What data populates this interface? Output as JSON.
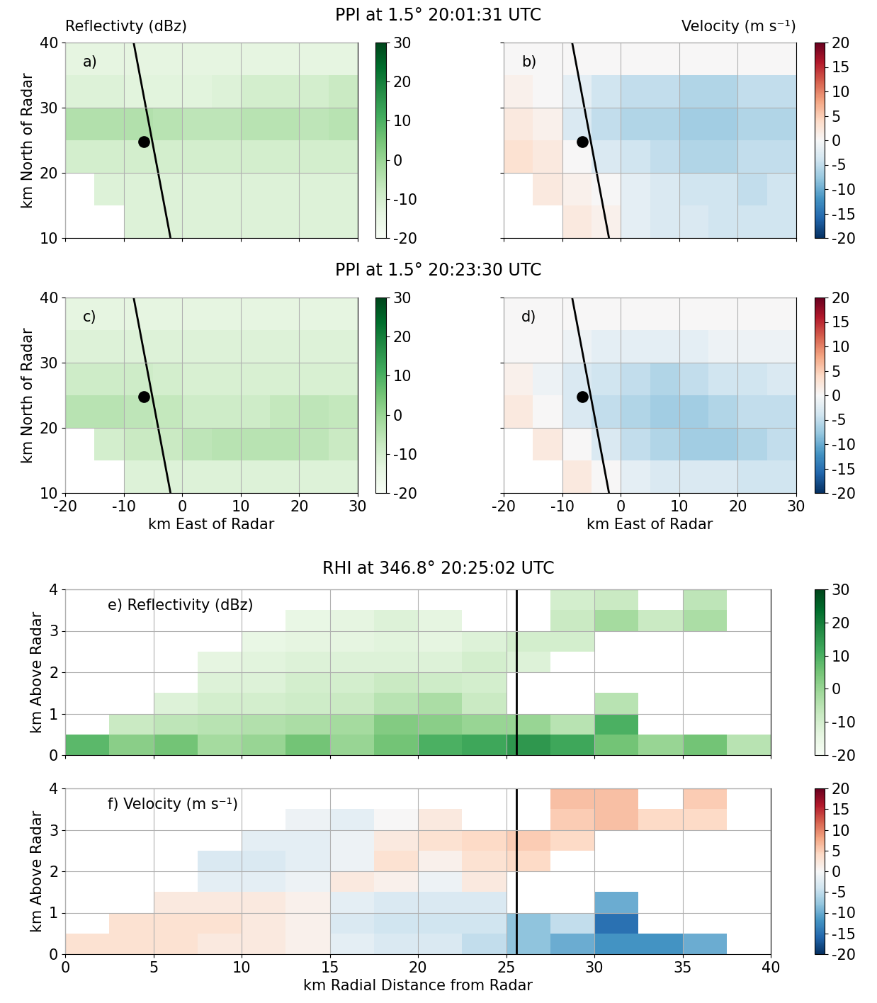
{
  "chart_data": [
    {
      "type": "heatmap",
      "title": "PPI at 1.5° 20:01:31 UTC",
      "subtitle": "Reflectivty (dBz)",
      "annotation": "a)",
      "color": "Greens",
      "ylabel": "km North of Radar",
      "tick_labels": "y",
      "grid": true,
      "xlim": [
        -20,
        30
      ],
      "xticks": [
        -20,
        -10,
        0,
        10,
        20,
        30
      ],
      "ylim": [
        10,
        40
      ],
      "yticks": [
        10,
        20,
        30,
        40
      ],
      "xbins": [
        -20,
        -15,
        -10,
        -5,
        0,
        5,
        10,
        15,
        20,
        25,
        30
      ],
      "ybins": [
        10,
        15,
        20,
        25,
        30,
        35,
        40
      ],
      "cells": [
        [
          null,
          null,
          -12,
          -12,
          -12,
          -12,
          -12,
          -12,
          -12,
          -12
        ],
        [
          null,
          -12,
          -12,
          -12,
          -12,
          -12,
          -12,
          -12,
          -12,
          -12
        ],
        [
          -10,
          -10,
          -10,
          -10,
          -10,
          -10,
          -10,
          -10,
          -10,
          -10
        ],
        [
          -4,
          -4,
          -4,
          -5,
          -6,
          -6,
          -5,
          -5,
          -6,
          -5
        ],
        [
          -12,
          -12,
          -13,
          -13,
          -13,
          -12,
          -10,
          -10,
          -10,
          -8
        ],
        [
          -14,
          -14,
          -14,
          -14,
          -14,
          -14,
          -14,
          -14,
          -14,
          -14
        ]
      ],
      "colorbar_range": [
        -20,
        30
      ],
      "colorbar_ticks": [
        -20,
        -10,
        0,
        10,
        20,
        30
      ],
      "line": {
        "x": [
          -2,
          -8.3
        ],
        "y": [
          10,
          40
        ],
        "color": "black"
      },
      "point": {
        "x": -6.6,
        "y": 24.8,
        "color": "black",
        "marker": "o"
      }
    },
    {
      "type": "heatmap",
      "subtitle": "Velocity (m s⁻¹)",
      "annotation": "b)",
      "color": "RdBu_r",
      "tick_labels": false,
      "grid": true,
      "xlim": [
        -20,
        30
      ],
      "xticks": [
        -20,
        -10,
        0,
        10,
        20,
        30
      ],
      "ylim": [
        10,
        40
      ],
      "yticks": [
        10,
        20,
        30,
        40
      ],
      "xbins": [
        -20,
        -15,
        -10,
        -5,
        0,
        5,
        10,
        15,
        20,
        25,
        30
      ],
      "ybins": [
        10,
        15,
        20,
        25,
        30,
        35,
        40
      ],
      "cells": [
        [
          null,
          null,
          2,
          1,
          -2,
          -3,
          -3,
          -4,
          -4,
          -4
        ],
        [
          null,
          2,
          1,
          0,
          -2,
          -3,
          -4,
          -4,
          -5,
          -4
        ],
        [
          3,
          2,
          0,
          -3,
          -4,
          -5,
          -6,
          -6,
          -5,
          -5
        ],
        [
          2,
          1,
          -3,
          -5,
          -6,
          -6,
          -7,
          -7,
          -6,
          -6
        ],
        [
          1,
          0,
          -2,
          -4,
          -5,
          -5,
          -6,
          -6,
          -5,
          -5
        ],
        [
          0,
          0,
          0,
          0,
          0,
          0,
          0,
          0,
          0,
          0
        ]
      ],
      "colorbar_range": [
        -20,
        20
      ],
      "colorbar_ticks": [
        -20,
        -15,
        -10,
        -5,
        0,
        5,
        10,
        15,
        20
      ],
      "line": {
        "x": [
          -2,
          -8.3
        ],
        "y": [
          10,
          40
        ],
        "color": "black"
      },
      "point": {
        "x": -6.6,
        "y": 24.8,
        "color": "black",
        "marker": "o"
      }
    },
    {
      "type": "heatmap",
      "title": "PPI at 1.5° 20:23:30 UTC",
      "annotation": "c)",
      "color": "Greens",
      "xlabel": "km East of Radar",
      "ylabel": "km North of Radar",
      "tick_labels": true,
      "grid": true,
      "xlim": [
        -20,
        30
      ],
      "xticks": [
        -20,
        -10,
        0,
        10,
        20,
        30
      ],
      "ylim": [
        10,
        40
      ],
      "yticks": [
        10,
        20,
        30,
        40
      ],
      "xbins": [
        -20,
        -15,
        -10,
        -5,
        0,
        5,
        10,
        15,
        20,
        25,
        30
      ],
      "ybins": [
        10,
        15,
        20,
        25,
        30,
        35,
        40
      ],
      "cells": [
        [
          null,
          null,
          -12,
          -12,
          -12,
          -12,
          -12,
          -12,
          -12,
          -12
        ],
        [
          null,
          -10,
          -8,
          -8,
          -6,
          -5,
          -5,
          -5,
          -6,
          -8
        ],
        [
          -5,
          -5,
          -6,
          -7,
          -9,
          -9,
          -9,
          -7,
          -6,
          -7
        ],
        [
          -9,
          -9,
          -9,
          -10,
          -11,
          -11,
          -11,
          -11,
          -11,
          -11
        ],
        [
          -12,
          -12,
          -12,
          -12,
          -12,
          -12,
          -12,
          -12,
          -12,
          -12
        ],
        [
          -14,
          -14,
          -14,
          -14,
          -14,
          -14,
          -14,
          -14,
          -14,
          -14
        ]
      ],
      "colorbar_range": [
        -20,
        30
      ],
      "colorbar_ticks": [
        -20,
        -10,
        0,
        10,
        20,
        30
      ],
      "line": {
        "x": [
          -2,
          -8.3
        ],
        "y": [
          10,
          40
        ],
        "color": "black"
      },
      "point": {
        "x": -6.6,
        "y": 24.8,
        "color": "black",
        "marker": "o"
      }
    },
    {
      "type": "heatmap",
      "annotation": "d)",
      "color": "RdBu_r",
      "xlabel": "km East of Radar",
      "tick_labels": "x",
      "grid": true,
      "xlim": [
        -20,
        30
      ],
      "xticks": [
        -20,
        -10,
        0,
        10,
        20,
        30
      ],
      "ylim": [
        10,
        40
      ],
      "yticks": [
        10,
        20,
        30,
        40
      ],
      "xbins": [
        -20,
        -15,
        -10,
        -5,
        0,
        5,
        10,
        15,
        20,
        25,
        30
      ],
      "ybins": [
        10,
        15,
        20,
        25,
        30,
        35,
        40
      ],
      "cells": [
        [
          null,
          null,
          2,
          0,
          -2,
          -3,
          -3,
          -3,
          -4,
          -4
        ],
        [
          null,
          2,
          0,
          -3,
          -5,
          -6,
          -7,
          -7,
          -6,
          -5
        ],
        [
          2,
          0,
          -3,
          -5,
          -6,
          -7,
          -7,
          -6,
          -5,
          -5
        ],
        [
          1,
          -1,
          -3,
          -4,
          -5,
          -6,
          -5,
          -4,
          -4,
          -3
        ],
        [
          0,
          0,
          -1,
          -2,
          -2,
          -2,
          -2,
          -1,
          -1,
          -1
        ],
        [
          0,
          0,
          0,
          0,
          0,
          0,
          0,
          0,
          0,
          0
        ]
      ],
      "colorbar_range": [
        -20,
        20
      ],
      "colorbar_ticks": [
        -20,
        -15,
        -10,
        -5,
        0,
        5,
        10,
        15,
        20
      ],
      "line": {
        "x": [
          -2,
          -8.3
        ],
        "y": [
          10,
          40
        ],
        "color": "black"
      },
      "point": {
        "x": -6.6,
        "y": 24.8,
        "color": "black",
        "marker": "o"
      }
    },
    {
      "type": "heatmap",
      "title": "RHI at 346.8° 20:25:02 UTC",
      "annotation": "e) Reflectivity (dBz)",
      "color": "Greens",
      "ylabel": "km Above Radar",
      "tick_labels": "y",
      "grid": true,
      "xlim": [
        0,
        40
      ],
      "xticks": [
        0,
        5,
        10,
        15,
        20,
        25,
        30,
        35,
        40
      ],
      "ylim": [
        0,
        4
      ],
      "yticks": [
        0,
        1,
        2,
        3,
        4
      ],
      "xbins": [
        0,
        2.5,
        5,
        7.5,
        10,
        12.5,
        15,
        17.5,
        20,
        22.5,
        25,
        27.5,
        30,
        32.5,
        35,
        37.5,
        40
      ],
      "ybins": [
        0,
        0.5,
        1,
        1.5,
        2,
        2.5,
        3,
        3.5,
        4
      ],
      "cells": [
        [
          8,
          2,
          5,
          -2,
          0,
          5,
          0,
          5,
          10,
          12,
          15,
          12,
          5,
          0,
          5,
          -5
        ],
        [
          null,
          -8,
          -6,
          -5,
          -4,
          -3,
          -2,
          3,
          2,
          0,
          0,
          -5,
          10,
          null,
          null,
          null
        ],
        [
          null,
          null,
          -12,
          -10,
          -10,
          -9,
          -8,
          -5,
          -3,
          -8,
          null,
          null,
          -5,
          null,
          null,
          null
        ],
        [
          null,
          null,
          null,
          -12,
          -12,
          -10,
          -10,
          -8,
          -9,
          -10,
          null,
          null,
          null,
          null,
          null,
          null
        ],
        [
          null,
          null,
          null,
          -14,
          -13,
          -12,
          -12,
          -12,
          -12,
          -10,
          -12,
          null,
          null,
          null,
          null,
          null
        ],
        [
          null,
          null,
          null,
          null,
          -15,
          -14,
          -14,
          -13,
          -14,
          -12,
          -10,
          -10,
          null,
          null,
          null,
          null
        ],
        [
          null,
          null,
          null,
          null,
          null,
          -15,
          -14,
          -12,
          -14,
          null,
          null,
          -8,
          -2,
          -8,
          -3,
          null
        ],
        [
          null,
          null,
          null,
          null,
          null,
          null,
          null,
          null,
          null,
          null,
          null,
          -10,
          -8,
          null,
          -6,
          null
        ]
      ],
      "colorbar_range": [
        -20,
        30
      ],
      "colorbar_ticks": [
        -20,
        -10,
        0,
        10,
        20,
        30
      ],
      "line": {
        "x": [
          25.6,
          25.6
        ],
        "y": [
          0,
          4
        ],
        "color": "black"
      }
    },
    {
      "type": "heatmap",
      "annotation": "f) Velocity (m s⁻¹)",
      "color": "RdBu_r",
      "xlabel": "km Radial Distance from Radar",
      "ylabel": "km Above Radar",
      "tick_labels": true,
      "grid": true,
      "xlim": [
        0,
        40
      ],
      "xticks": [
        0,
        5,
        10,
        15,
        20,
        25,
        30,
        35,
        40
      ],
      "ylim": [
        0,
        4
      ],
      "yticks": [
        0,
        1,
        2,
        3,
        4
      ],
      "xbins": [
        0,
        2.5,
        5,
        7.5,
        10,
        12.5,
        15,
        17.5,
        20,
        22.5,
        25,
        27.5,
        30,
        32.5,
        35,
        37.5,
        40
      ],
      "ybins": [
        0,
        0.5,
        1,
        1.5,
        2,
        2.5,
        3,
        3.5,
        4
      ],
      "cells": [
        [
          3,
          3,
          3,
          2,
          2,
          1,
          -2,
          -3,
          -3,
          -5,
          -8,
          -10,
          -12,
          -12,
          -10,
          null
        ],
        [
          null,
          3,
          3,
          3,
          2,
          1,
          -3,
          -4,
          -4,
          -4,
          -8,
          -5,
          -15,
          null,
          null,
          null
        ],
        [
          null,
          null,
          2,
          2,
          2,
          1,
          -2,
          -3,
          -3,
          -3,
          null,
          null,
          -10,
          null,
          null,
          null
        ],
        [
          null,
          null,
          null,
          -2,
          -2,
          -1,
          2,
          1,
          -1,
          2,
          null,
          null,
          null,
          null,
          null,
          null
        ],
        [
          null,
          null,
          null,
          -3,
          -3,
          -2,
          -1,
          3,
          1,
          3,
          4,
          null,
          null,
          null,
          null,
          null
        ],
        [
          null,
          null,
          null,
          null,
          -2,
          -2,
          -1,
          2,
          3,
          4,
          5,
          4,
          null,
          null,
          null,
          null
        ],
        [
          null,
          null,
          null,
          null,
          null,
          -1,
          -2,
          0,
          2,
          null,
          null,
          5,
          6,
          4,
          4,
          null
        ],
        [
          null,
          null,
          null,
          null,
          null,
          null,
          null,
          null,
          null,
          null,
          null,
          6,
          6,
          null,
          5,
          null
        ]
      ],
      "colorbar_range": [
        -20,
        20
      ],
      "colorbar_ticks": [
        -20,
        -15,
        -10,
        -5,
        0,
        5,
        10,
        15,
        20
      ],
      "line": {
        "x": [
          25.6,
          25.6
        ],
        "y": [
          0,
          4
        ],
        "color": "black"
      }
    }
  ]
}
